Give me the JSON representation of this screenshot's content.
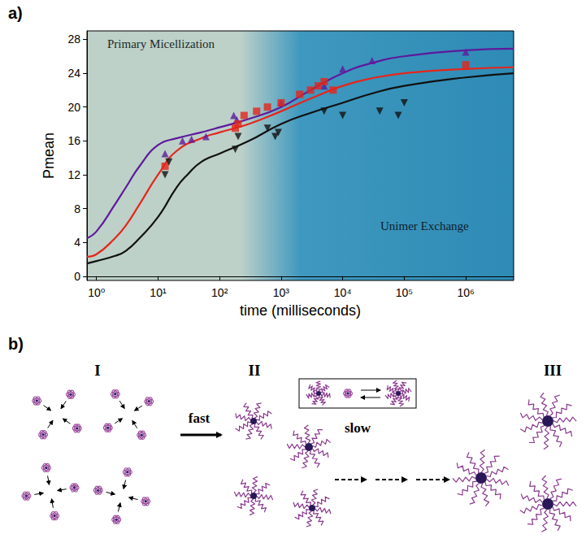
{
  "chart_data": {
    "type": "line",
    "panel_label": "a)",
    "x_label": "time (milliseconds)",
    "y_label": "Pmean",
    "annotations": [
      "Primary Micellization",
      "Unimer Exchange"
    ],
    "log": "x",
    "grid": false,
    "xlim": [
      0.7,
      6000000
    ],
    "xticks": [
      {
        "value": 1,
        "label": "10⁰"
      },
      {
        "value": 10,
        "label": "10¹"
      },
      {
        "value": 100,
        "label": "10²"
      },
      {
        "value": 1000,
        "label": "10³"
      },
      {
        "value": 10000,
        "label": "10⁴"
      },
      {
        "value": 100000,
        "label": "10⁵"
      },
      {
        "value": 1000000,
        "label": "10⁶"
      }
    ],
    "ylim": [
      -0.5,
      29
    ],
    "yticks": [
      0,
      4,
      8,
      12,
      16,
      20,
      24,
      28
    ],
    "series": [
      {
        "type": "line",
        "color": "#5e1a9c",
        "line_style": "solid",
        "x": [
          0.7,
          1,
          2,
          3,
          5,
          10,
          20,
          50,
          100,
          300,
          1000,
          3000,
          10000,
          30000,
          100000,
          1000000,
          6000000
        ],
        "values": [
          4.5,
          5.3,
          8.5,
          10.5,
          13,
          15.5,
          16.3,
          17,
          17.6,
          18.6,
          20,
          22,
          24,
          25.2,
          26,
          26.7,
          26.9
        ]
      },
      {
        "type": "scatter",
        "color": "#5e1a9c",
        "marker": "triangle",
        "x": [
          13,
          25,
          35,
          60,
          170,
          190,
          1000,
          5000,
          10000,
          30000,
          1000000
        ],
        "values": [
          14.5,
          16,
          16.2,
          16.5,
          19,
          18.5,
          20.5,
          22.5,
          24.5,
          25.5,
          26.5
        ]
      },
      {
        "type": "line",
        "color": "#e4261c",
        "line_style": "solid",
        "x": [
          0.7,
          1,
          2,
          3,
          5,
          10,
          20,
          50,
          100,
          300,
          1000,
          3000,
          10000,
          30000,
          100000,
          1000000,
          6000000
        ],
        "values": [
          2.3,
          2.6,
          4.5,
          6,
          8.5,
          12,
          14.8,
          16.3,
          17,
          18,
          19.5,
          21,
          22.5,
          23.4,
          24,
          24.5,
          24.7
        ]
      },
      {
        "type": "scatter",
        "color": "#e4261c",
        "marker": "square",
        "x": [
          13,
          180,
          200,
          250,
          400,
          600,
          1000,
          2000,
          3000,
          4000,
          5000,
          7000,
          1000000
        ],
        "values": [
          13,
          17.5,
          18,
          19,
          19.5,
          20,
          20.5,
          21.5,
          22,
          22.5,
          23,
          22,
          25
        ]
      },
      {
        "type": "line",
        "color": "#111111",
        "line_style": "solid",
        "x": [
          0.7,
          1,
          2,
          3,
          5,
          10,
          20,
          30,
          50,
          100,
          300,
          1000,
          3000,
          10000,
          30000,
          100000,
          1000000,
          6000000
        ],
        "values": [
          1.5,
          1.8,
          2.4,
          3,
          4.5,
          7,
          10.5,
          12,
          13.5,
          14.5,
          16,
          18,
          19.3,
          20.5,
          21.6,
          22.5,
          23.5,
          24
        ]
      },
      {
        "type": "scatter",
        "color": "#111111",
        "marker": "triangle-down",
        "x": [
          13,
          15,
          180,
          200,
          600,
          800,
          900,
          5000,
          10000,
          40000,
          80000,
          100000
        ],
        "values": [
          12,
          13.5,
          15,
          16.5,
          17.5,
          16.5,
          17,
          19.5,
          19,
          19.5,
          19,
          20.5
        ]
      }
    ]
  },
  "diagram": {
    "panel_label": "b)",
    "stages": [
      {
        "label": "I"
      },
      {
        "label": "II"
      },
      {
        "label": "III"
      }
    ],
    "steps": [
      {
        "label": "fast"
      },
      {
        "label": "slow"
      }
    ]
  }
}
